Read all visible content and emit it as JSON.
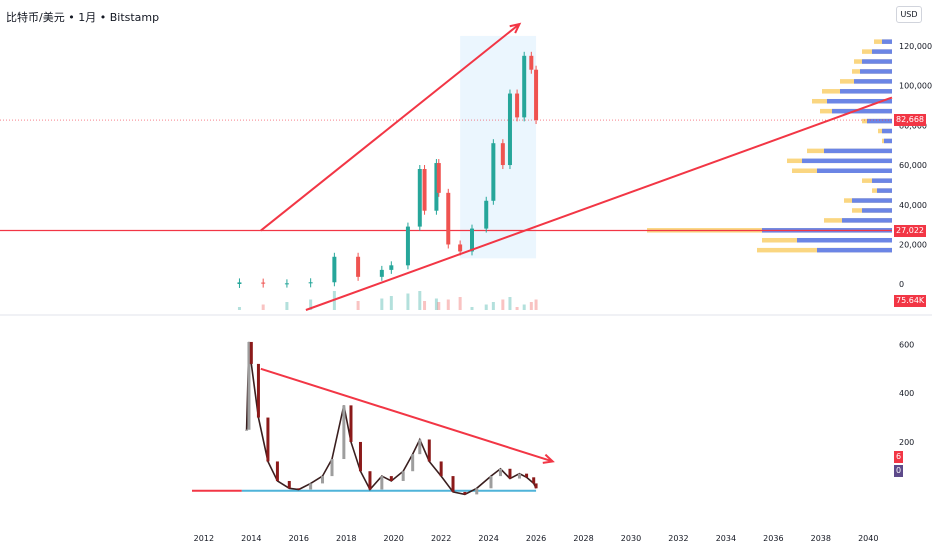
{
  "header": {
    "symbol": "比特币/美元",
    "interval": "1月",
    "exchange": "Bitstamp",
    "separator": "•"
  },
  "currency_button": "USD",
  "price_tags": {
    "last_price": "82,668",
    "support_price": "27,022",
    "volume": "75.64K",
    "osc_value_a": "6",
    "osc_value_b": "0"
  },
  "colors": {
    "up": "#26a69a",
    "down": "#ef5350",
    "trend": "#f23645",
    "highlight": "#e3f2fd",
    "vp_blue": "#5b7cf0",
    "vp_yellow": "#f9cf6b",
    "osc_line": "#4fb3d9"
  },
  "chart_data": [
    {
      "type": "candlestick",
      "title": "",
      "x_axis": {
        "label": "",
        "ticks": [
          "2012",
          "2014",
          "2016",
          "2018",
          "2020",
          "2022",
          "2024",
          "2026",
          "2028",
          "2030",
          "2032",
          "2034",
          "2036",
          "2038",
          "2040"
        ],
        "range": [
          2011.5,
          2041
        ]
      },
      "y_axis": {
        "label": "",
        "ticks": [
          "0",
          "20,000",
          "40,000",
          "60,000",
          "80,000",
          "100,000",
          "120,000"
        ],
        "range": [
          -13000,
          128000
        ],
        "side": "right"
      },
      "grid": true,
      "series": [
        {
          "points": [
            [
              2013.5,
              100,
              900
            ],
            [
              2014.5,
              800,
              300
            ],
            [
              2015.5,
              300,
              430
            ],
            [
              2016.5,
              430,
              960
            ],
            [
              2017.5,
              960,
              13800
            ],
            [
              2018.5,
              13800,
              3700
            ],
            [
              2019.5,
              3700,
              7200
            ],
            [
              2019.9,
              7200,
              9500
            ],
            [
              2020.6,
              9500,
              29000
            ],
            [
              2021.1,
              29000,
              58000
            ],
            [
              2021.3,
              58000,
              37000
            ],
            [
              2021.8,
              37000,
              61000
            ],
            [
              2021.9,
              61000,
              46000
            ],
            [
              2022.3,
              46000,
              20000
            ],
            [
              2022.8,
              20000,
              16500
            ],
            [
              2023.3,
              16500,
              28000
            ],
            [
              2023.9,
              28000,
              42000
            ],
            [
              2024.2,
              42000,
              71000
            ],
            [
              2024.6,
              71000,
              60000
            ],
            [
              2024.9,
              60000,
              96000
            ],
            [
              2025.2,
              96000,
              84000
            ],
            [
              2025.5,
              84000,
              115000
            ],
            [
              2025.8,
              115000,
              108000
            ],
            [
              2026.0,
              108000,
              82668
            ]
          ]
        }
      ],
      "volume": {
        "last_label": "75.64K"
      },
      "horizontal_levels": [
        82668,
        27022
      ],
      "highlight_range": {
        "x": [
          2022.8,
          2026.0
        ],
        "y": [
          13000,
          125000
        ]
      },
      "trendlines": [
        {
          "from": [
            2014.4,
            27000
          ],
          "to": [
            2025.3,
            131000
          ],
          "arrow": true
        },
        {
          "from": [
            2016.3,
            -13000
          ],
          "to": [
            2041,
            94000
          ],
          "arrow": false
        }
      ],
      "volume_profile": [
        {
          "price": 122000,
          "blue": 10,
          "yellow": 18
        },
        {
          "price": 117000,
          "blue": 20,
          "yellow": 30
        },
        {
          "price": 112000,
          "blue": 30,
          "yellow": 38
        },
        {
          "price": 107000,
          "blue": 32,
          "yellow": 40
        },
        {
          "price": 102000,
          "blue": 38,
          "yellow": 52
        },
        {
          "price": 97000,
          "blue": 52,
          "yellow": 70
        },
        {
          "price": 92000,
          "blue": 65,
          "yellow": 80
        },
        {
          "price": 87000,
          "blue": 60,
          "yellow": 72
        },
        {
          "price": 82000,
          "blue": 25,
          "yellow": 30
        },
        {
          "price": 77000,
          "blue": 10,
          "yellow": 14
        },
        {
          "price": 72000,
          "blue": 8,
          "yellow": 10
        },
        {
          "price": 67000,
          "blue": 68,
          "yellow": 85
        },
        {
          "price": 62000,
          "blue": 90,
          "yellow": 105
        },
        {
          "price": 57000,
          "blue": 75,
          "yellow": 100
        },
        {
          "price": 52000,
          "blue": 20,
          "yellow": 30
        },
        {
          "price": 47000,
          "blue": 15,
          "yellow": 20
        },
        {
          "price": 42000,
          "blue": 40,
          "yellow": 48
        },
        {
          "price": 37000,
          "blue": 30,
          "yellow": 40
        },
        {
          "price": 32000,
          "blue": 50,
          "yellow": 68
        },
        {
          "price": 27000,
          "blue": 130,
          "yellow": 245
        },
        {
          "price": 22000,
          "blue": 95,
          "yellow": 130
        },
        {
          "price": 17000,
          "blue": 75,
          "yellow": 135
        }
      ]
    },
    {
      "type": "line",
      "title": "",
      "y_axis": {
        "label": "",
        "ticks": [
          "200",
          "400",
          "600"
        ],
        "range": [
          -120,
          700
        ],
        "side": "right"
      },
      "series": [
        {
          "points": [
            [
              2013.8,
              250
            ],
            [
              2013.9,
              610
            ],
            [
              2014.0,
              520
            ],
            [
              2014.3,
              300
            ],
            [
              2014.7,
              120
            ],
            [
              2015.1,
              40
            ],
            [
              2015.6,
              10
            ],
            [
              2016.0,
              5
            ],
            [
              2016.5,
              30
            ],
            [
              2017.0,
              60
            ],
            [
              2017.4,
              130
            ],
            [
              2017.9,
              350
            ],
            [
              2018.2,
              200
            ],
            [
              2018.6,
              80
            ],
            [
              2019.0,
              5
            ],
            [
              2019.5,
              60
            ],
            [
              2019.9,
              40
            ],
            [
              2020.4,
              80
            ],
            [
              2020.8,
              150
            ],
            [
              2021.1,
              210
            ],
            [
              2021.5,
              120
            ],
            [
              2022.0,
              60
            ],
            [
              2022.5,
              -5
            ],
            [
              2023.0,
              -15
            ],
            [
              2023.5,
              10
            ],
            [
              2024.1,
              60
            ],
            [
              2024.5,
              90
            ],
            [
              2024.9,
              50
            ],
            [
              2025.3,
              70
            ],
            [
              2025.6,
              55
            ],
            [
              2025.9,
              30
            ],
            [
              2026.0,
              10
            ]
          ]
        }
      ],
      "baseline_segments": [
        {
          "x": [
            2011.5,
            2013.6
          ],
          "y": 0,
          "color": "red"
        },
        {
          "x": [
            2013.6,
            2026.0
          ],
          "y": 0,
          "color": "blue"
        }
      ],
      "trendlines": [
        {
          "from": [
            2014.4,
            500
          ],
          "to": [
            2026.7,
            120
          ],
          "arrow": true
        }
      ],
      "value_tags": [
        "6",
        "0"
      ]
    }
  ]
}
